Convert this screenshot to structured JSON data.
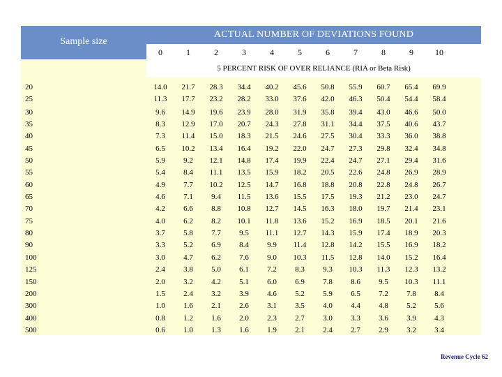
{
  "header": {
    "sample_size_label": "Sample size",
    "title": "ACTUAL NUMBER OF DEVIATIONS FOUND",
    "risk_label": "5 PERCENT RISK OF OVER RELIANCE (RIA or Beta Risk)"
  },
  "columns": [
    "0",
    "1",
    "2",
    "3",
    "4",
    "5",
    "6",
    "7",
    "8",
    "9",
    "10"
  ],
  "rows": [
    {
      "size": "20",
      "values": [
        "14.0",
        "21.7",
        "28.3",
        "34.4",
        "40.2",
        "45.6",
        "50.8",
        "55.9",
        "60.7",
        "65.4",
        "69.9"
      ]
    },
    {
      "size": "25",
      "values": [
        "11.3",
        "17.7",
        "23.2",
        "28.2",
        "33.0",
        "37.6",
        "42.0",
        "46.3",
        "50.4",
        "54.4",
        "58.4"
      ]
    },
    {
      "size": "30",
      "values": [
        "9.6",
        "14.9",
        "19.6",
        "23.9",
        "28.0",
        "31.9",
        "35.8",
        "39.4",
        "43.0",
        "46.6",
        "50.0"
      ]
    },
    {
      "size": "35",
      "values": [
        "8.3",
        "12.9",
        "17.0",
        "20.7",
        "24.3",
        "27.8",
        "31.1",
        "34.4",
        "37.5",
        "40.6",
        "43.7"
      ]
    },
    {
      "size": "40",
      "values": [
        "7.3",
        "11.4",
        "15.0",
        "18.3",
        "21.5",
        "24.6",
        "27.5",
        "30.4",
        "33.3",
        "36.0",
        "38.8"
      ]
    },
    {
      "size": "45",
      "values": [
        "6.5",
        "10.2",
        "13.4",
        "16.4",
        "19.2",
        "22.0",
        "24.7",
        "27.3",
        "29.8",
        "32.4",
        "34.8"
      ]
    },
    {
      "size": "50",
      "values": [
        "5.9",
        "9.2",
        "12.1",
        "14.8",
        "17.4",
        "19.9",
        "22.4",
        "24.7",
        "27.1",
        "29.4",
        "31.6"
      ]
    },
    {
      "size": "55",
      "values": [
        "5.4",
        "8.4",
        "11.1",
        "13.5",
        "15.9",
        "18.2",
        "20.5",
        "22.6",
        "24.8",
        "26.9",
        "28.9"
      ]
    },
    {
      "size": "60",
      "values": [
        "4.9",
        "7.7",
        "10.2",
        "12.5",
        "14.7",
        "16.8",
        "18.8",
        "20.8",
        "22.8",
        "24.8",
        "26.7"
      ]
    },
    {
      "size": "65",
      "values": [
        "4.6",
        "7.1",
        "9.4",
        "11.5",
        "13.6",
        "15.5",
        "17.5",
        "19.3",
        "21.2",
        "23.0",
        "24.7"
      ]
    },
    {
      "size": "70",
      "values": [
        "4.2",
        "6.6",
        "8.8",
        "10.8",
        "12.7",
        "14.5",
        "16.3",
        "18.0",
        "19.7",
        "21.4",
        "23.1"
      ]
    },
    {
      "size": "75",
      "values": [
        "4.0",
        "6.2",
        "8.2",
        "10.1",
        "11.8",
        "13.6",
        "15.2",
        "16.9",
        "18.5",
        "20.1",
        "21.6"
      ]
    },
    {
      "size": "80",
      "values": [
        "3.7",
        "5.8",
        "7.7",
        "9.5",
        "11.1",
        "12.7",
        "14.3",
        "15.9",
        "17.4",
        "18.9",
        "20.3"
      ]
    },
    {
      "size": "90",
      "values": [
        "3.3",
        "5.2",
        "6.9",
        "8.4",
        "9.9",
        "11.4",
        "12.8",
        "14.2",
        "15.5",
        "16.9",
        "18.2"
      ]
    },
    {
      "size": "100",
      "values": [
        "3.0",
        "4.7",
        "6.2",
        "7.6",
        "9.0",
        "10.3",
        "11.5",
        "12.8",
        "14.0",
        "15.2",
        "16.4"
      ]
    },
    {
      "size": "125",
      "values": [
        "2.4",
        "3.8",
        "5.0",
        "6.1",
        "7.2",
        "8.3",
        "9.3",
        "10.3",
        "11.3",
        "12.3",
        "13.2"
      ]
    },
    {
      "size": "150",
      "values": [
        "2.0",
        "3.2",
        "4.2",
        "5.1",
        "6.0",
        "6.9",
        "7.8",
        "8.6",
        "9.5",
        "10.3",
        "11.1"
      ]
    },
    {
      "size": "200",
      "values": [
        "1.5",
        "2.4",
        "3.2",
        "3.9",
        "4.6",
        "5.2",
        "5.9",
        "6.5",
        "7.2",
        "7.8",
        "8.4"
      ]
    },
    {
      "size": "300",
      "values": [
        "1.0",
        "1.6",
        "2.1",
        "2.6",
        "3.1",
        "3.5",
        "4.0",
        "4.4",
        "4.8",
        "5.2",
        "5.6"
      ]
    },
    {
      "size": "400",
      "values": [
        "0.8",
        "1.2",
        "1.6",
        "2.0",
        "2.3",
        "2.7",
        "3.0",
        "3.3",
        "3.6",
        "3.9",
        "4.3"
      ]
    },
    {
      "size": "500",
      "values": [
        "0.6",
        "1.0",
        "1.3",
        "1.6",
        "1.9",
        "2.1",
        "2.4",
        "2.7",
        "2.9",
        "3.2",
        "3.4"
      ]
    }
  ],
  "footer": "Revenue Cycle 62"
}
